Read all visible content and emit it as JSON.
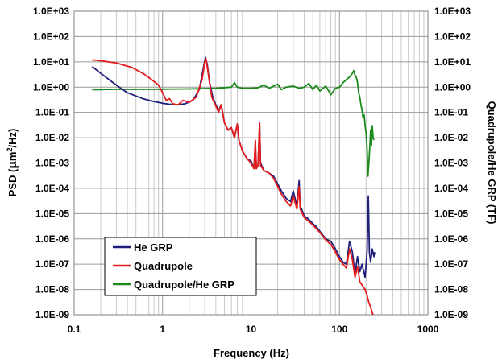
{
  "chart_data": {
    "type": "line",
    "x_scale": "log",
    "y_scale": "log",
    "xlabel": "Frequency (Hz)",
    "ylabel_left": {
      "main": "PSD (",
      "mu": "μ",
      "mid": "m",
      "sup": "2",
      "end": "/Hz)"
    },
    "ylabel_right": "Quadrupole/He GRP (TF)",
    "xlim": [
      0.1,
      1000
    ],
    "ylim": [
      1e-09,
      1000
    ],
    "grid": true,
    "legend_position": "bottom-left",
    "x_tick_labels": [
      "0.1",
      "1",
      "10",
      "100",
      "1000"
    ],
    "y_tick_labels": [
      "1.0E-09",
      "1.0E-08",
      "1.0E-07",
      "1.0E-06",
      "1.0E-05",
      "1.0E-04",
      "1.0E-03",
      "1.0E-02",
      "1.0E-01",
      "1.0E+00",
      "1.0E+01",
      "1.0E+02",
      "1.0E+03"
    ],
    "series": [
      {
        "name": "He GRP",
        "color": "#1f1f7a",
        "points": [
          [
            0.16,
            6.5
          ],
          [
            0.2,
            3.5
          ],
          [
            0.3,
            1.2
          ],
          [
            0.4,
            0.6
          ],
          [
            0.6,
            0.35
          ],
          [
            0.8,
            0.27
          ],
          [
            1.0,
            0.23
          ],
          [
            1.2,
            0.21
          ],
          [
            1.5,
            0.2
          ],
          [
            1.8,
            0.22
          ],
          [
            2.2,
            0.3
          ],
          [
            2.6,
            0.8
          ],
          [
            2.9,
            6
          ],
          [
            3.05,
            15
          ],
          [
            3.2,
            8
          ],
          [
            3.4,
            1.5
          ],
          [
            3.7,
            0.4
          ],
          [
            4.0,
            0.2
          ],
          [
            4.3,
            0.12
          ],
          [
            4.6,
            0.2
          ],
          [
            5.0,
            0.04
          ],
          [
            5.5,
            0.02
          ],
          [
            6.0,
            0.025
          ],
          [
            6.5,
            0.01
          ],
          [
            7.0,
            0.035
          ],
          [
            7.3,
            0.008
          ],
          [
            8.0,
            0.003
          ],
          [
            9.0,
            0.0015
          ],
          [
            10.0,
            0.0012
          ],
          [
            10.8,
            0.0006
          ],
          [
            11.2,
            0.006
          ],
          [
            11.5,
            0.0006
          ],
          [
            12.0,
            0.0008
          ],
          [
            12.5,
            0.04
          ],
          [
            12.8,
            0.001
          ],
          [
            14,
            0.0005
          ],
          [
            16,
            0.0004
          ],
          [
            18,
            0.0003
          ],
          [
            20,
            0.00015
          ],
          [
            22,
            8e-05
          ],
          [
            25,
            4e-05
          ],
          [
            28,
            3e-05
          ],
          [
            30,
            8e-05
          ],
          [
            33,
            2e-05
          ],
          [
            35,
            0.0002
          ],
          [
            36,
            2e-05
          ],
          [
            40,
            8e-06
          ],
          [
            45,
            6e-06
          ],
          [
            50,
            4e-06
          ],
          [
            55,
            3e-06
          ],
          [
            60,
            2e-06
          ],
          [
            70,
            1e-06
          ],
          [
            80,
            8e-07
          ],
          [
            90,
            4e-07
          ],
          [
            100,
            2e-07
          ],
          [
            110,
            1.2e-07
          ],
          [
            120,
            1e-07
          ],
          [
            130,
            8e-07
          ],
          [
            140,
            3e-07
          ],
          [
            150,
            4e-08
          ],
          [
            160,
            2e-07
          ],
          [
            170,
            5e-08
          ],
          [
            180,
            1e-07
          ],
          [
            195,
            3e-08
          ],
          [
            205,
            3e-07
          ],
          [
            212,
            5e-05
          ],
          [
            218,
            3e-07
          ],
          [
            225,
            1.2e-07
          ],
          [
            235,
            4e-07
          ],
          [
            245,
            2e-07
          ],
          [
            250,
            3e-07
          ]
        ]
      },
      {
        "name": "Quadrupole",
        "color": "#e61c1c",
        "points": [
          [
            0.16,
            12
          ],
          [
            0.2,
            11
          ],
          [
            0.3,
            9
          ],
          [
            0.45,
            6
          ],
          [
            0.6,
            3.5
          ],
          [
            0.75,
            2
          ],
          [
            0.9,
            1.2
          ],
          [
            1.0,
            0.6
          ],
          [
            1.1,
            0.3
          ],
          [
            1.2,
            0.35
          ],
          [
            1.3,
            0.22
          ],
          [
            1.5,
            0.2
          ],
          [
            1.7,
            0.3
          ],
          [
            2.0,
            0.25
          ],
          [
            2.4,
            0.4
          ],
          [
            2.8,
            2
          ],
          [
            3.0,
            10
          ],
          [
            3.1,
            13
          ],
          [
            3.3,
            3
          ],
          [
            3.6,
            0.4
          ],
          [
            4.0,
            0.18
          ],
          [
            4.3,
            0.1
          ],
          [
            4.6,
            0.2
          ],
          [
            5.0,
            0.04
          ],
          [
            5.5,
            0.02
          ],
          [
            6.0,
            0.025
          ],
          [
            6.5,
            0.01
          ],
          [
            7.0,
            0.035
          ],
          [
            7.3,
            0.008
          ],
          [
            8.0,
            0.003
          ],
          [
            9.0,
            0.0015
          ],
          [
            10.0,
            0.001
          ],
          [
            10.8,
            0.0006
          ],
          [
            11.2,
            0.008
          ],
          [
            11.5,
            0.0006
          ],
          [
            12.0,
            0.0008
          ],
          [
            12.5,
            0.04
          ],
          [
            12.8,
            0.0008
          ],
          [
            14,
            0.0005
          ],
          [
            16,
            0.0004
          ],
          [
            18,
            0.00025
          ],
          [
            20,
            0.00012
          ],
          [
            22,
            6e-05
          ],
          [
            25,
            3e-05
          ],
          [
            28,
            2e-05
          ],
          [
            30,
            5e-05
          ],
          [
            33,
            1.5e-05
          ],
          [
            35,
            0.00012
          ],
          [
            36,
            1.5e-05
          ],
          [
            40,
            7e-06
          ],
          [
            45,
            5e-06
          ],
          [
            50,
            3.5e-06
          ],
          [
            55,
            2.5e-06
          ],
          [
            60,
            1.8e-06
          ],
          [
            70,
            9e-07
          ],
          [
            80,
            6e-07
          ],
          [
            90,
            3e-07
          ],
          [
            100,
            1.5e-07
          ],
          [
            110,
            1e-07
          ],
          [
            120,
            7e-08
          ],
          [
            130,
            4e-07
          ],
          [
            140,
            1.5e-07
          ],
          [
            150,
            3e-08
          ],
          [
            160,
            8e-08
          ],
          [
            170,
            2e-08
          ],
          [
            180,
            1.5e-08
          ],
          [
            195,
            1e-08
          ],
          [
            205,
            6e-09
          ],
          [
            215,
            3e-09
          ],
          [
            225,
            2e-09
          ],
          [
            235,
            1.2e-09
          ],
          [
            240,
            1e-09
          ]
        ]
      },
      {
        "name": "Quadrupole/He GRP",
        "color": "#1a8a1a",
        "points": [
          [
            0.16,
            0.8
          ],
          [
            0.2,
            0.8
          ],
          [
            0.3,
            0.82
          ],
          [
            0.5,
            0.82
          ],
          [
            0.8,
            0.82
          ],
          [
            1.0,
            0.83
          ],
          [
            1.5,
            0.84
          ],
          [
            2.0,
            0.85
          ],
          [
            2.5,
            0.86
          ],
          [
            3.0,
            0.88
          ],
          [
            4.0,
            0.9
          ],
          [
            5.0,
            0.95
          ],
          [
            6.0,
            1.0
          ],
          [
            6.5,
            1.5
          ],
          [
            7.0,
            1.0
          ],
          [
            8.0,
            0.9
          ],
          [
            10,
            0.9
          ],
          [
            12,
            0.95
          ],
          [
            14,
            1.2
          ],
          [
            16,
            0.9
          ],
          [
            20,
            1.3
          ],
          [
            22,
            0.8
          ],
          [
            25,
            1.0
          ],
          [
            30,
            1.1
          ],
          [
            35,
            0.9
          ],
          [
            40,
            1.0
          ],
          [
            45,
            1.4
          ],
          [
            50,
            0.8
          ],
          [
            55,
            1.2
          ],
          [
            60,
            0.7
          ],
          [
            70,
            1.1
          ],
          [
            80,
            0.5
          ],
          [
            90,
            0.9
          ],
          [
            100,
            1.0
          ],
          [
            110,
            1.5
          ],
          [
            120,
            2.0
          ],
          [
            130,
            2.5
          ],
          [
            140,
            3.5
          ],
          [
            145,
            4.5
          ],
          [
            150,
            3.0
          ],
          [
            155,
            2.5
          ],
          [
            160,
            1.5
          ],
          [
            165,
            0.6
          ],
          [
            170,
            0.4
          ],
          [
            175,
            0.2
          ],
          [
            180,
            0.12
          ],
          [
            185,
            0.06
          ],
          [
            190,
            0.08
          ],
          [
            195,
            0.03
          ],
          [
            200,
            0.015
          ],
          [
            205,
            0.004
          ],
          [
            210,
            0.0003
          ],
          [
            215,
            0.001
          ],
          [
            220,
            0.004
          ],
          [
            225,
            0.02
          ],
          [
            230,
            0.005
          ],
          [
            235,
            0.03
          ],
          [
            240,
            0.01
          ],
          [
            245,
            0.008
          ]
        ]
      }
    ]
  }
}
